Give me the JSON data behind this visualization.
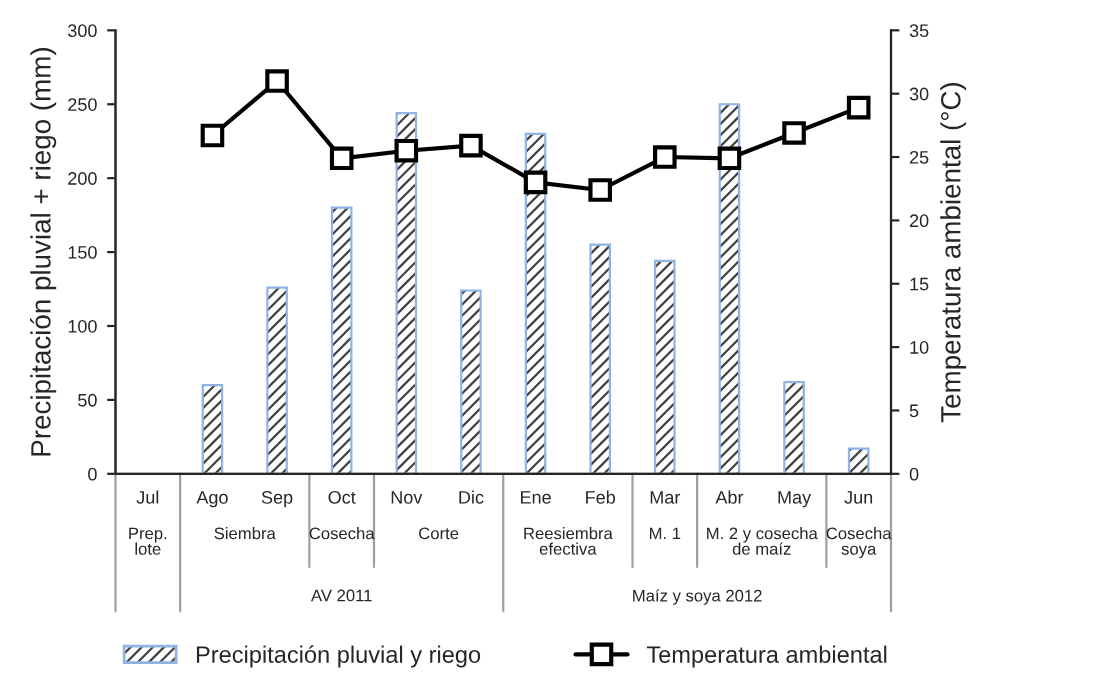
{
  "chart_data": {
    "type": "bar",
    "categories": [
      "Jul",
      "Ago",
      "Sep",
      "Oct",
      "Nov",
      "Dic",
      "Ene",
      "Feb",
      "Mar",
      "Abr",
      "May",
      "Jun"
    ],
    "ylabel": "Precipitación pluvial + riego (mm)",
    "y2label": "Temperatura ambiental (°C)",
    "series": [
      {
        "name": "Precipitación pluvial y riego",
        "color": "#8fb4e3",
        "values": [
          null,
          60,
          126,
          180,
          244,
          124,
          230,
          155,
          144,
          250,
          62,
          17
        ]
      },
      {
        "name": "Temperatura ambiental",
        "type": "line",
        "axis": "y2",
        "color": "#000000",
        "marker": "square",
        "values": [
          null,
          26.7,
          31,
          24.9,
          25.5,
          25.9,
          23,
          22.4,
          25,
          24.9,
          26.9,
          28.9
        ]
      }
    ],
    "ylim": [
      0,
      300
    ],
    "yticks": [
      0,
      50,
      100,
      150,
      200,
      250,
      300
    ],
    "y2lim": [
      0,
      35
    ],
    "y2ticks": [
      0,
      5,
      10,
      15,
      20,
      25,
      30,
      35
    ],
    "annotations": [
      "Prep.\nlote",
      "Siembra",
      "Cosecha",
      "Corte",
      "Reesiembra\nefectiva",
      "M. 1",
      "M. 2 y cosecha\nde maíz",
      "Cosecha\nsoya",
      "AV 2011",
      "Maíz y soya 2012"
    ],
    "grid": false,
    "legend": "bottom"
  }
}
